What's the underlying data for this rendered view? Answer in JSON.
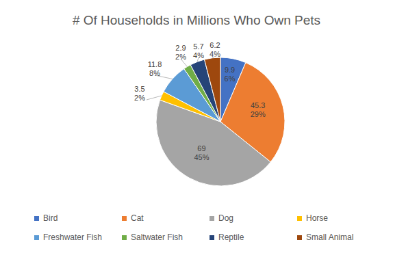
{
  "chart_data": {
    "type": "pie",
    "title": "# Of Households in Millions Who Own Pets",
    "categories": [
      "Bird",
      "Cat",
      "Dog",
      "Horse",
      "Freshwater Fish",
      "Saltwater Fish",
      "Reptile",
      "Small Animal"
    ],
    "values": [
      9.9,
      45.3,
      69,
      3.5,
      11.8,
      2.9,
      5.7,
      6.2
    ],
    "percentages": [
      6,
      29,
      45,
      2,
      8,
      2,
      4,
      4
    ],
    "percentage_labels": [
      "6%",
      "29%",
      "45%",
      "2%",
      "8%",
      "2%",
      "4%",
      "4%"
    ],
    "colors": [
      "#4472c4",
      "#ed7d31",
      "#a5a5a5",
      "#ffc000",
      "#5b9bd5",
      "#70ad47",
      "#264478",
      "#9e480e"
    ],
    "data_labels": true,
    "legend": "bottom"
  }
}
